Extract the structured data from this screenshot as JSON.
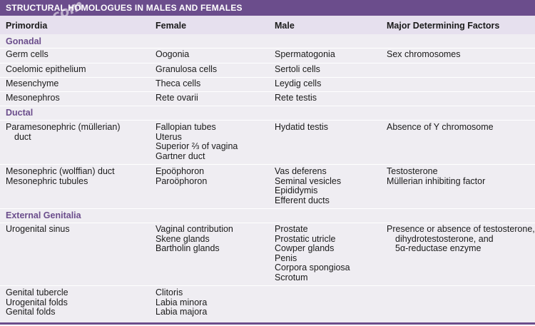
{
  "title": "STRUCTURAL HOMOLOGUES IN MALES AND FEMALES",
  "watermark": "kiku.com",
  "accent_color": "#6b4d8c",
  "headers": [
    "Primordia",
    "Female",
    "Male",
    "Major Determining Factors"
  ],
  "sections": {
    "gonadal": "Gonadal",
    "ductal": "Ductal",
    "external": "External Genitalia"
  },
  "rows": {
    "germ": {
      "primordia": [
        "Germ cells"
      ],
      "female": [
        "Oogonia"
      ],
      "male": [
        "Spermatogonia"
      ],
      "factors": [
        "Sex chromosomes"
      ]
    },
    "coelomic": {
      "primordia": [
        "Coelomic epithelium"
      ],
      "female": [
        "Granulosa cells"
      ],
      "male": [
        "Sertoli cells"
      ],
      "factors": []
    },
    "mesenchyme": {
      "primordia": [
        "Mesenchyme"
      ],
      "female": [
        "Theca cells"
      ],
      "male": [
        "Leydig cells"
      ],
      "factors": []
    },
    "mesonephros": {
      "primordia": [
        "Mesonephros"
      ],
      "female": [
        "Rete ovarii"
      ],
      "male": [
        "Rete testis"
      ],
      "factors": []
    },
    "paramesonephric": {
      "primordia": [
        "Paramesonephric (müllerian)",
        "duct"
      ],
      "female": [
        "Fallopian tubes",
        "Uterus",
        "Superior ⅔ of vagina",
        "Gartner duct"
      ],
      "male": [
        "Hydatid testis"
      ],
      "factors": [
        "Absence of Y chromosome"
      ]
    },
    "mesonephric": {
      "primordia": [
        "Mesonephric (wolffian) duct",
        "Mesonephric tubules"
      ],
      "female": [
        "Epoöphoron",
        "Paroöphoron"
      ],
      "male": [
        "Vas deferens",
        "Seminal vesicles",
        "Epididymis",
        "Efferent ducts"
      ],
      "factors": [
        "Testosterone",
        "Müllerian inhibiting factor"
      ]
    },
    "urogenital": {
      "primordia": [
        "Urogenital sinus"
      ],
      "female": [
        "Vaginal contribution",
        "Skene glands",
        "Bartholin glands"
      ],
      "male": [
        "Prostate",
        "Prostatic utricle",
        "Cowper glands",
        "Penis",
        "Corpora spongiosa",
        "Scrotum"
      ],
      "factors": [
        "Presence or absence of testosterone,",
        "dihydrotestosterone, and",
        "5α-reductase enzyme"
      ]
    },
    "genital": {
      "primordia": [
        "Genital tubercle",
        "Urogenital folds",
        "Genital folds"
      ],
      "female": [
        "Clitoris",
        "Labia minora",
        "Labia majora"
      ],
      "male": [],
      "factors": []
    }
  }
}
